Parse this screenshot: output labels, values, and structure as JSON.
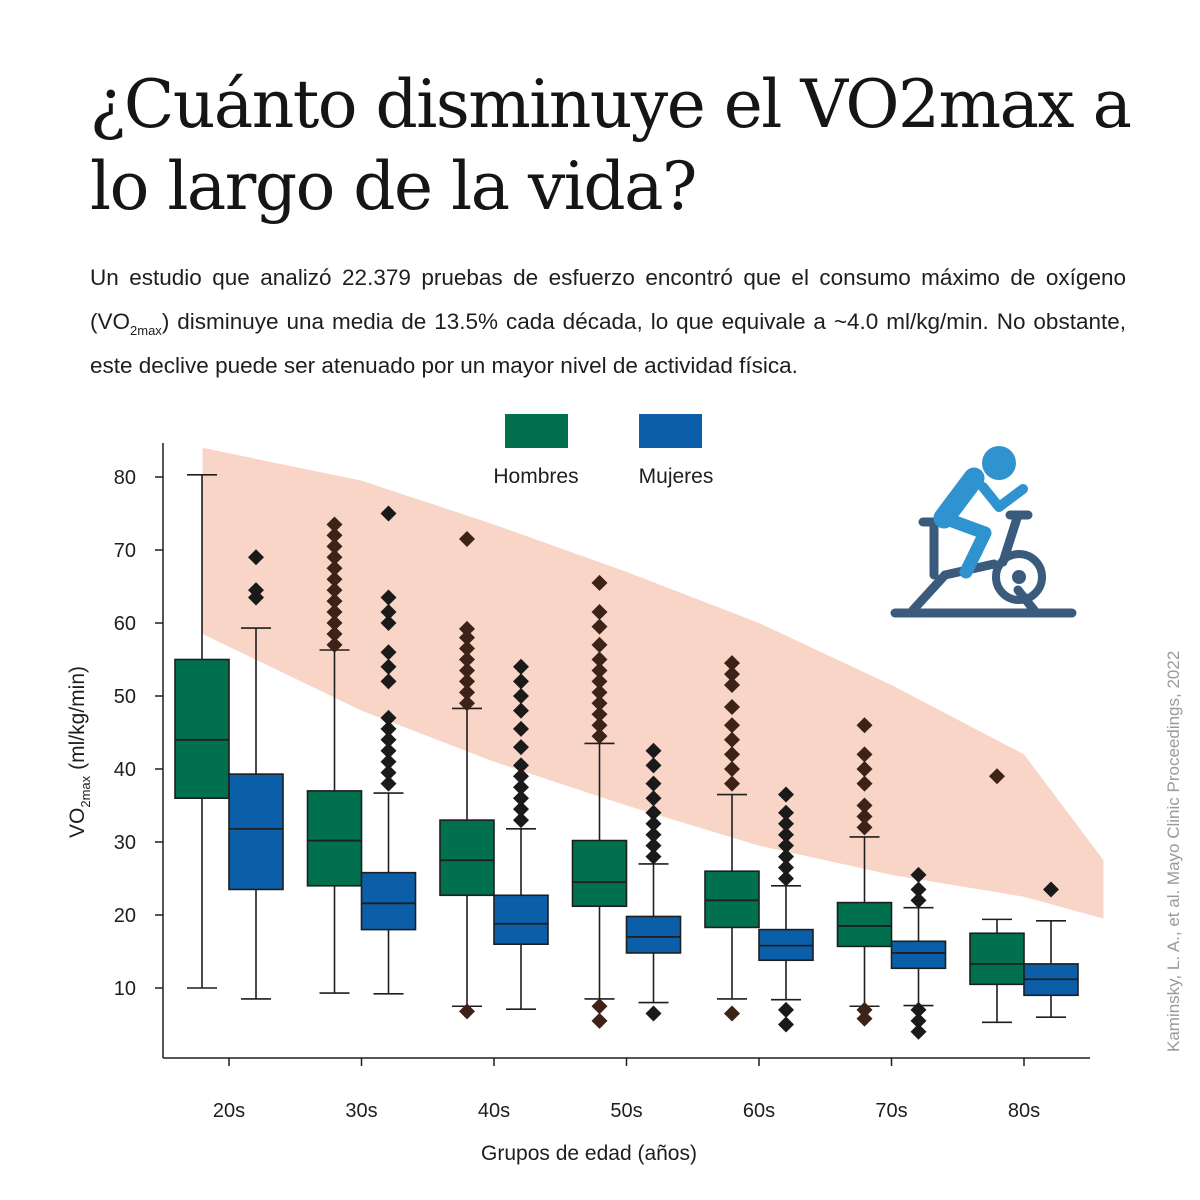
{
  "title": "¿Cuánto disminuye el VO2max a lo largo de la vida?",
  "subtitle": {
    "part1": "Un estudio que analizó 22.379 pruebas de esfuerzo encontró que el consumo máximo de oxígeno (VO",
    "sub": "2max",
    "part2": ") disminuye una media de 13.5% cada década, lo que equivale a ~4.0 ml/kg/min. No obstante, este declive puede ser atenuado por un mayor nivel de actividad física."
  },
  "credit": "Kaminsky, L. A., et al. Mayo Clinic Proceedings, 2022",
  "icon": "cyclist-exercise-bike-icon",
  "colors": {
    "men": "#00704f",
    "women": "#0a5fa8",
    "band": "#f9d5c8",
    "outlier_men": "#3d2217",
    "outlier_women": "#1a1a1a",
    "icon_rider": "#2e93cf",
    "icon_bike": "#3b5b7d"
  },
  "chart_data": {
    "type": "boxplot",
    "xlabel": "Grupos de edad (años)",
    "ylabel": {
      "main": "VO",
      "sub": "2max",
      "unit": "(ml/kg/min)"
    },
    "ylim": [
      3,
      85
    ],
    "yticks": [
      10,
      20,
      30,
      40,
      50,
      60,
      70,
      80
    ],
    "legend": [
      "Hombres",
      "Mujeres"
    ],
    "legend_position": "top-center",
    "categories": [
      "20s",
      "30s",
      "40s",
      "50s",
      "60s",
      "70s",
      "80s"
    ],
    "band": {
      "upper": [
        [
          18,
          84
        ],
        [
          30,
          79.5
        ],
        [
          40,
          73.5
        ],
        [
          50,
          67
        ],
        [
          60,
          60
        ],
        [
          70,
          51.5
        ],
        [
          80,
          42
        ],
        [
          86,
          27.5
        ]
      ],
      "lower": [
        [
          18,
          58.5
        ],
        [
          30,
          48
        ],
        [
          40,
          41
        ],
        [
          50,
          35
        ],
        [
          60,
          29.5
        ],
        [
          70,
          25.5
        ],
        [
          80,
          22.5
        ],
        [
          86,
          19.5
        ]
      ]
    },
    "series": [
      {
        "name": "Hombres",
        "boxes": [
          {
            "whislo": 10,
            "q1": 36,
            "med": 44,
            "q3": 55,
            "whishi": 80.3,
            "fliers": []
          },
          {
            "whislo": 9.3,
            "q1": 24,
            "med": 30.2,
            "q3": 37,
            "whishi": 56.3,
            "fliers": [
              57,
              58.5,
              60,
              61.5,
              63,
              64.5,
              66,
              67.5,
              69,
              70.5,
              72,
              73.5
            ]
          },
          {
            "whislo": 7.5,
            "q1": 22.7,
            "med": 27.5,
            "q3": 33,
            "whishi": 48.3,
            "fliers": [
              49,
              50.5,
              52,
              53.5,
              55,
              56.5,
              58,
              59.2,
              71.5,
              6.8
            ]
          },
          {
            "whislo": 8.5,
            "q1": 21.2,
            "med": 24.5,
            "q3": 30.2,
            "whishi": 43.5,
            "fliers": [
              44.5,
              46,
              47.5,
              49,
              50.5,
              52,
              53.5,
              55,
              57,
              59.5,
              61.5,
              65.5,
              7.5,
              5.5
            ]
          },
          {
            "whislo": 8.5,
            "q1": 18.3,
            "med": 22,
            "q3": 26,
            "whishi": 36.5,
            "fliers": [
              38,
              40,
              42,
              44,
              46,
              48.5,
              51.5,
              53,
              54.5,
              6.5
            ]
          },
          {
            "whislo": 7.5,
            "q1": 15.7,
            "med": 18.5,
            "q3": 21.7,
            "whishi": 30.7,
            "fliers": [
              32,
              33.5,
              35,
              38,
              40,
              42,
              46,
              7,
              5.8
            ]
          },
          {
            "whislo": 5.3,
            "q1": 10.5,
            "med": 13.3,
            "q3": 17.5,
            "whishi": 19.4,
            "fliers": [
              39
            ]
          }
        ]
      },
      {
        "name": "Mujeres",
        "boxes": [
          {
            "whislo": 8.5,
            "q1": 23.5,
            "med": 31.8,
            "q3": 39.3,
            "whishi": 59.3,
            "fliers": [
              63.5,
              64.5,
              69
            ]
          },
          {
            "whislo": 9.2,
            "q1": 18,
            "med": 21.6,
            "q3": 25.8,
            "whishi": 36.7,
            "fliers": [
              38,
              39.5,
              41,
              42.5,
              44,
              45.5,
              47,
              52,
              54,
              56,
              60,
              61.5,
              63.5,
              75
            ]
          },
          {
            "whislo": 7.1,
            "q1": 16,
            "med": 18.8,
            "q3": 22.7,
            "whishi": 31.8,
            "fliers": [
              33,
              34.5,
              36,
              37.5,
              39,
              40.5,
              43,
              45.5,
              48,
              50,
              52,
              54
            ]
          },
          {
            "whislo": 8,
            "q1": 14.8,
            "med": 17,
            "q3": 19.8,
            "whishi": 27,
            "fliers": [
              28,
              29.5,
              31,
              32.5,
              34,
              36,
              38,
              40.5,
              42.5,
              6.5
            ]
          },
          {
            "whislo": 8.4,
            "q1": 13.8,
            "med": 15.8,
            "q3": 18,
            "whishi": 24,
            "fliers": [
              25,
              26.5,
              28,
              29.5,
              31,
              32.5,
              34,
              36.5,
              7,
              5
            ]
          },
          {
            "whislo": 7.6,
            "q1": 12.7,
            "med": 14.8,
            "q3": 16.4,
            "whishi": 21,
            "fliers": [
              22,
              23.5,
              25.5,
              7,
              5.5,
              4
            ]
          },
          {
            "whislo": 6,
            "q1": 9,
            "med": 11.2,
            "q3": 13.3,
            "whishi": 19.2,
            "fliers": [
              23.5
            ]
          }
        ]
      }
    ]
  }
}
